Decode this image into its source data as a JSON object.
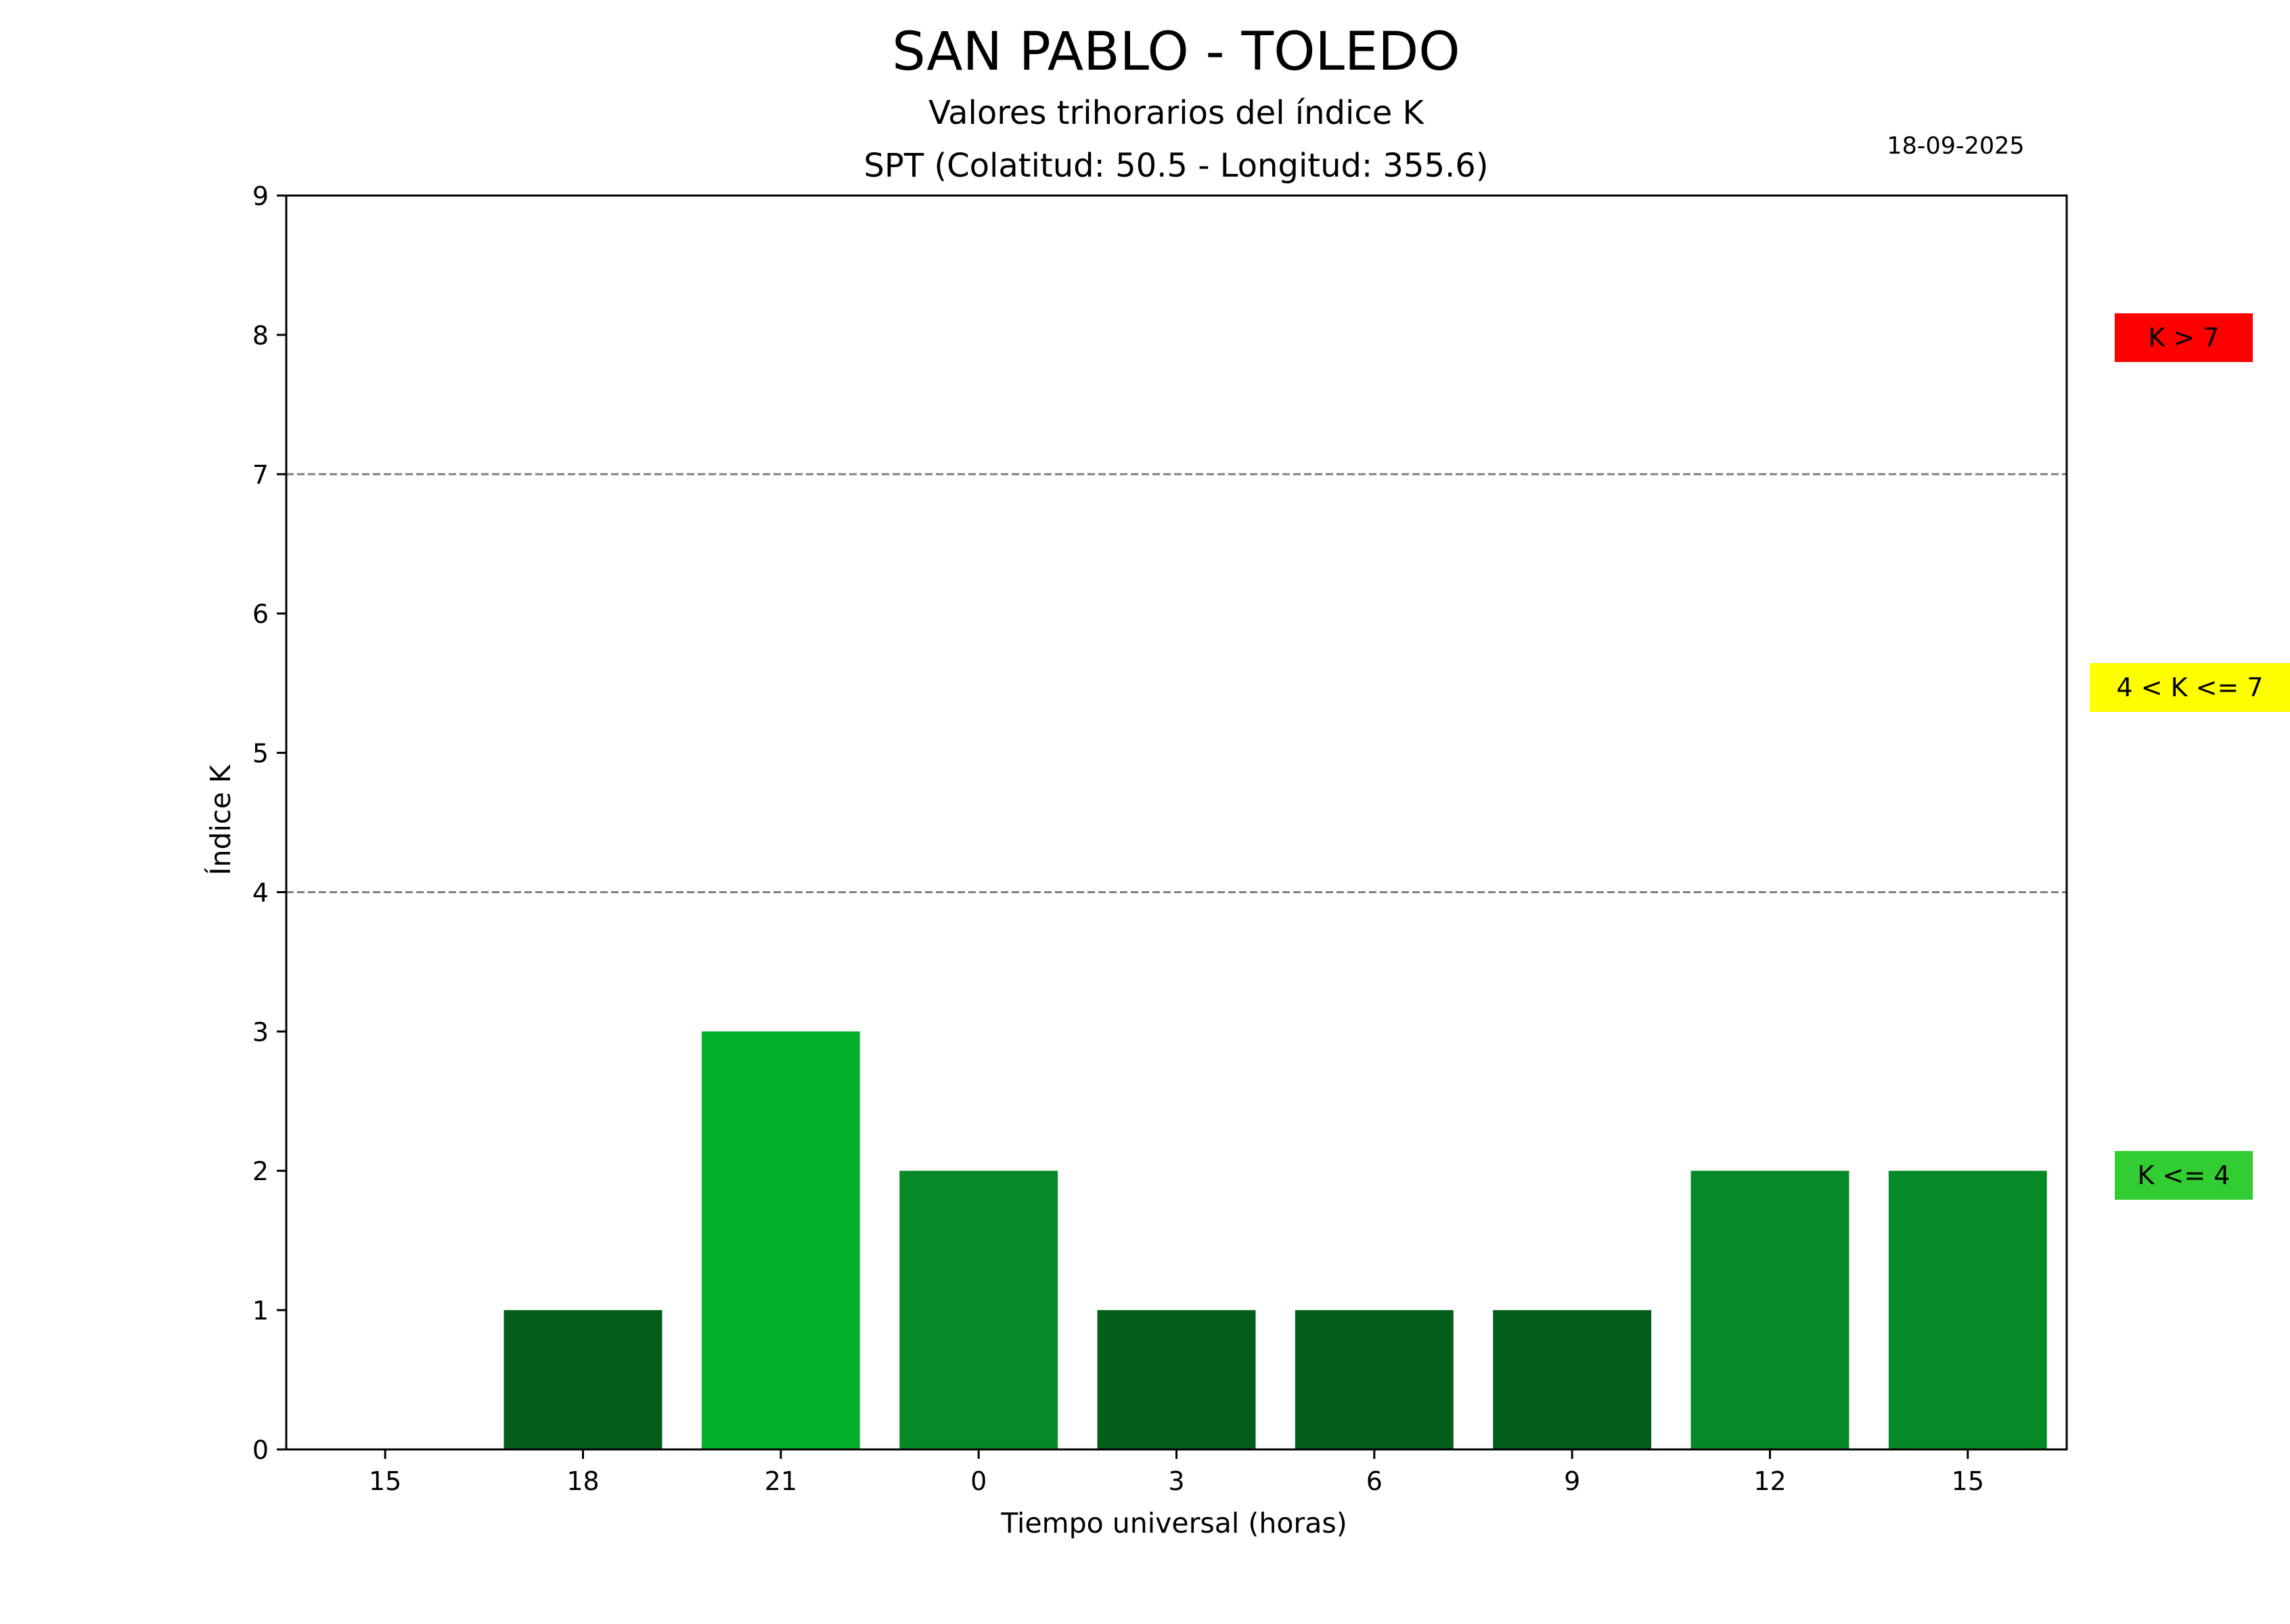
{
  "chart_data": {
    "type": "bar",
    "title": "SAN PABLO - TOLEDO",
    "subtitle": "Valores trihorarios del índice K",
    "station": "SPT (Colatitud: 50.5 - Longitud: 355.6)",
    "date": "18-09-2025",
    "xlabel": "Tiempo universal (horas)",
    "ylabel": "Índice K",
    "xlim": [
      0,
      27
    ],
    "ylim": [
      0,
      9
    ],
    "x_ticks": [
      {
        "pos": 0,
        "label": "15"
      },
      {
        "pos": 3,
        "label": "18"
      },
      {
        "pos": 6,
        "label": "21"
      },
      {
        "pos": 9,
        "label": "0"
      },
      {
        "pos": 12,
        "label": "3"
      },
      {
        "pos": 15,
        "label": "6"
      },
      {
        "pos": 18,
        "label": "9"
      },
      {
        "pos": 21,
        "label": "12"
      },
      {
        "pos": 24,
        "label": "15"
      }
    ],
    "y_ticks": [
      0,
      1,
      2,
      3,
      4,
      5,
      6,
      7,
      8,
      9
    ],
    "bars": [
      {
        "start": 0,
        "end": 3,
        "value": 0,
        "color": "#045e1b"
      },
      {
        "start": 3,
        "end": 6,
        "value": 1,
        "color": "#045e1b"
      },
      {
        "start": 6,
        "end": 9,
        "value": 3,
        "color": "#03b02d"
      },
      {
        "start": 9,
        "end": 12,
        "value": 2,
        "color": "#068927"
      },
      {
        "start": 12,
        "end": 15,
        "value": 1,
        "color": "#045e1b"
      },
      {
        "start": 15,
        "end": 18,
        "value": 1,
        "color": "#045e1b"
      },
      {
        "start": 18,
        "end": 21,
        "value": 1,
        "color": "#045e1b"
      },
      {
        "start": 21,
        "end": 24,
        "value": 2,
        "color": "#068927"
      },
      {
        "start": 24,
        "end": 27,
        "value": 2,
        "color": "#068927"
      }
    ],
    "threshold_lines": [
      4,
      7
    ],
    "legend": [
      {
        "label": "K > 7",
        "color": "#ff0000"
      },
      {
        "label": "4 < K <= 7",
        "color": "#ffff00"
      },
      {
        "label": "K <= 4",
        "color": "#32cd32"
      }
    ],
    "grid": false
  }
}
